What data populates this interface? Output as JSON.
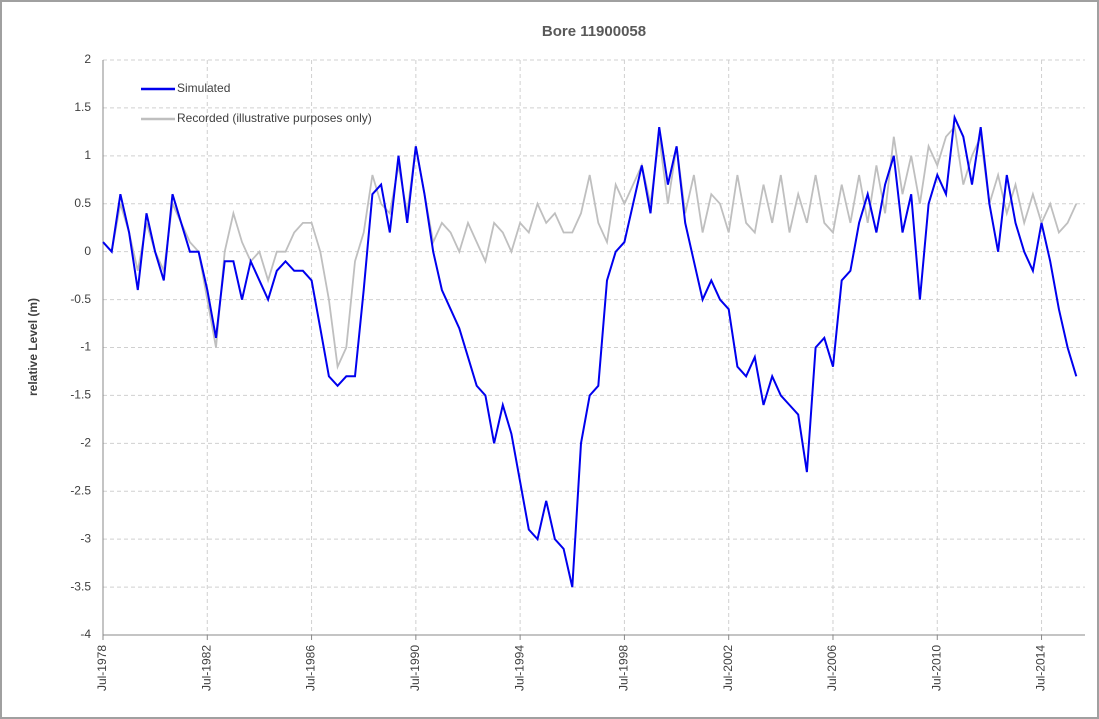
{
  "chart_data": {
    "type": "line",
    "title": "Bore 11900058",
    "y_label": "relative Level (m)",
    "x": [
      "1978-07",
      "1978-11",
      "1979-03",
      "1979-07",
      "1979-11",
      "1980-03",
      "1980-07",
      "1980-11",
      "1981-03",
      "1981-07",
      "1981-11",
      "1982-03",
      "1982-07",
      "1982-11",
      "1983-03",
      "1983-07",
      "1983-11",
      "1984-03",
      "1984-07",
      "1984-11",
      "1985-03",
      "1985-07",
      "1985-11",
      "1986-03",
      "1986-07",
      "1986-11",
      "1987-03",
      "1987-07",
      "1987-11",
      "1988-03",
      "1988-07",
      "1988-11",
      "1989-03",
      "1989-07",
      "1989-11",
      "1990-03",
      "1990-07",
      "1990-11",
      "1991-03",
      "1991-07",
      "1991-11",
      "1992-03",
      "1992-07",
      "1992-11",
      "1993-03",
      "1993-07",
      "1993-11",
      "1994-03",
      "1994-07",
      "1994-11",
      "1995-03",
      "1995-07",
      "1995-11",
      "1996-03",
      "1996-07",
      "1996-11",
      "1997-03",
      "1997-07",
      "1997-11",
      "1998-03",
      "1998-07",
      "1998-11",
      "1999-03",
      "1999-07",
      "1999-11",
      "2000-03",
      "2000-07",
      "2000-11",
      "2001-03",
      "2001-07",
      "2001-11",
      "2002-03",
      "2002-07",
      "2002-11",
      "2003-03",
      "2003-07",
      "2003-11",
      "2004-03",
      "2004-07",
      "2004-11",
      "2005-03",
      "2005-07",
      "2005-11",
      "2006-03",
      "2006-07",
      "2006-11",
      "2007-03",
      "2007-07",
      "2007-11",
      "2008-03",
      "2008-07",
      "2008-11",
      "2009-03",
      "2009-07",
      "2009-11",
      "2010-03",
      "2010-07",
      "2010-11",
      "2011-03",
      "2011-07",
      "2011-11",
      "2012-03",
      "2012-07",
      "2012-11",
      "2013-03",
      "2013-07",
      "2013-11",
      "2014-03",
      "2014-07",
      "2014-11",
      "2015-03",
      "2015-07",
      "2015-11"
    ],
    "series": [
      {
        "name": "Recorded (illustrative purposes only)",
        "color": "#bfbfbf",
        "values": [
          0.1,
          0.0,
          0.5,
          0.2,
          -0.2,
          0.3,
          0.0,
          -0.2,
          0.5,
          0.3,
          0.1,
          0.0,
          -0.5,
          -1.0,
          0.0,
          0.4,
          0.1,
          -0.1,
          0.0,
          -0.3,
          0.0,
          0.0,
          0.2,
          0.3,
          0.3,
          0.0,
          -0.5,
          -1.2,
          -1.0,
          -0.1,
          0.2,
          0.8,
          0.5,
          0.4,
          0.9,
          0.4,
          1.1,
          0.6,
          0.1,
          0.3,
          0.2,
          0.0,
          0.3,
          0.1,
          -0.1,
          0.3,
          0.2,
          0.0,
          0.3,
          0.2,
          0.5,
          0.3,
          0.4,
          0.2,
          0.2,
          0.4,
          0.8,
          0.3,
          0.1,
          0.7,
          0.5,
          0.7,
          0.9,
          0.5,
          1.2,
          0.5,
          1.1,
          0.4,
          0.8,
          0.2,
          0.6,
          0.5,
          0.2,
          0.8,
          0.3,
          0.2,
          0.7,
          0.3,
          0.8,
          0.2,
          0.6,
          0.3,
          0.8,
          0.3,
          0.2,
          0.7,
          0.3,
          0.8,
          0.3,
          0.9,
          0.4,
          1.2,
          0.6,
          1.0,
          0.5,
          1.1,
          0.9,
          1.2,
          1.3,
          0.7,
          1.0,
          1.2,
          0.5,
          0.8,
          0.4,
          0.7,
          0.3,
          0.6,
          0.3,
          0.5,
          0.2,
          0.3,
          0.5
        ]
      },
      {
        "name": "Simulated",
        "color": "#0000ee",
        "values": [
          0.1,
          0.0,
          0.6,
          0.2,
          -0.4,
          0.4,
          0.0,
          -0.3,
          0.6,
          0.3,
          0.0,
          0.0,
          -0.4,
          -0.9,
          -0.1,
          -0.1,
          -0.5,
          -0.1,
          -0.3,
          -0.5,
          -0.2,
          -0.1,
          -0.2,
          -0.2,
          -0.3,
          -0.8,
          -1.3,
          -1.4,
          -1.3,
          -1.3,
          -0.4,
          0.6,
          0.7,
          0.2,
          1.0,
          0.3,
          1.1,
          0.6,
          0.0,
          -0.4,
          -0.6,
          -0.8,
          -1.1,
          -1.4,
          -1.5,
          -2.0,
          -1.6,
          -1.9,
          -2.4,
          -2.9,
          -3.0,
          -2.6,
          -3.0,
          -3.1,
          -3.5,
          -2.0,
          -1.5,
          -1.4,
          -0.3,
          0.0,
          0.1,
          0.5,
          0.9,
          0.4,
          1.3,
          0.7,
          1.1,
          0.3,
          -0.1,
          -0.5,
          -0.3,
          -0.5,
          -0.6,
          -1.2,
          -1.3,
          -1.1,
          -1.6,
          -1.3,
          -1.5,
          -1.6,
          -1.7,
          -2.3,
          -1.0,
          -0.9,
          -1.2,
          -0.3,
          -0.2,
          0.3,
          0.6,
          0.2,
          0.7,
          1.0,
          0.2,
          0.6,
          -0.5,
          0.5,
          0.8,
          0.6,
          1.4,
          1.2,
          0.7,
          1.3,
          0.5,
          0.0,
          0.8,
          0.3,
          0.0,
          -0.2,
          0.3,
          -0.1,
          -0.6,
          -1.0,
          -1.3
        ]
      }
    ],
    "xlim": [
      "1978-07",
      "2016-03"
    ],
    "xticks": [
      {
        "value": "1978-07",
        "label": "Jul-1978"
      },
      {
        "value": "1982-07",
        "label": "Jul-1982"
      },
      {
        "value": "1986-07",
        "label": "Jul-1986"
      },
      {
        "value": "1990-07",
        "label": "Jul-1990"
      },
      {
        "value": "1994-07",
        "label": "Jul-1994"
      },
      {
        "value": "1998-07",
        "label": "Jul-1998"
      },
      {
        "value": "2002-07",
        "label": "Jul-2002"
      },
      {
        "value": "2006-07",
        "label": "Jul-2006"
      },
      {
        "value": "2010-07",
        "label": "Jul-2010"
      },
      {
        "value": "2014-07",
        "label": "Jul-2014"
      }
    ],
    "ylim": [
      -4,
      2
    ],
    "yticks": [
      2,
      1.5,
      1,
      0.5,
      0,
      -0.5,
      -1,
      -1.5,
      -2,
      -2.5,
      -3,
      -3.5,
      -4
    ],
    "grid": true,
    "legend": "upper-left"
  }
}
